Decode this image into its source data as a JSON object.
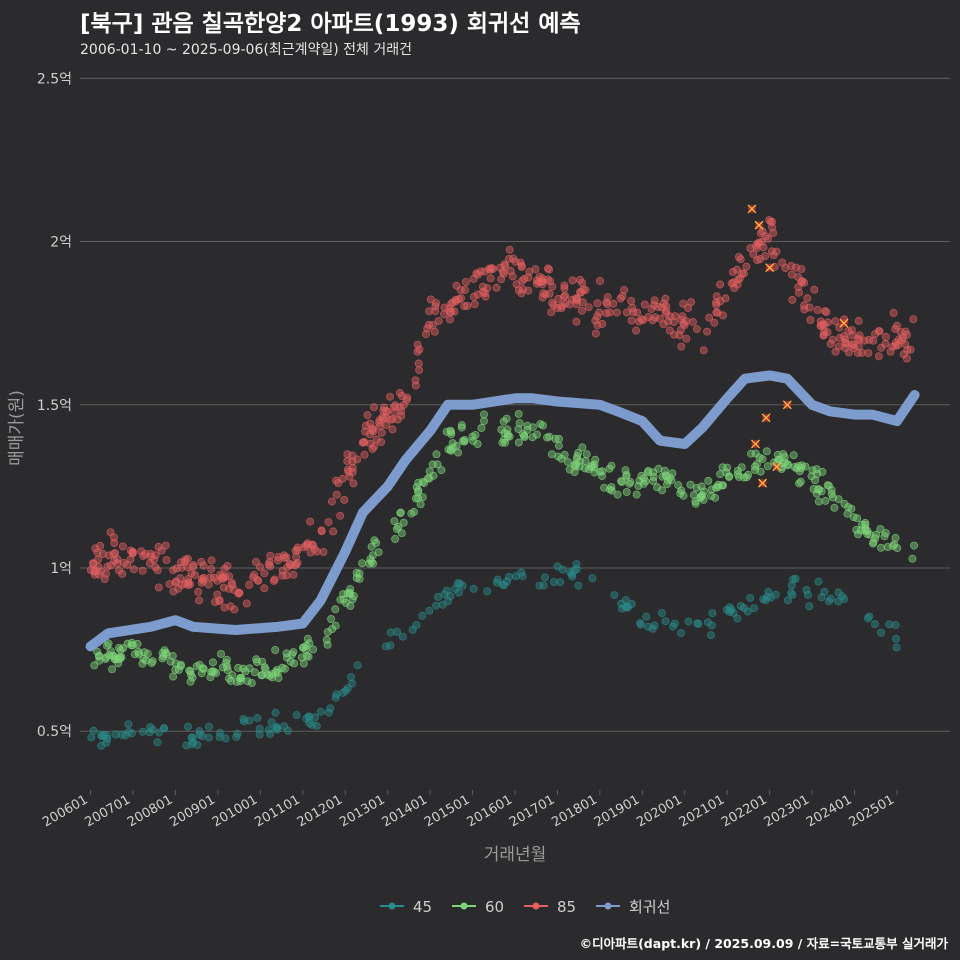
{
  "title": "[북구] 관음 칠곡한양2 아파트(1993) 회귀선 예측",
  "subtitle": "2006-01-10 ~ 2025-09-06(최근계약일) 전체 거래건",
  "credit": "©디아파트(dapt.kr) / 2025.09.09 / 자료=국토교통부 실거래가",
  "colors": {
    "background": "#2b2a2c",
    "grid": "#5e5e5e",
    "text": "#cfcfcf",
    "s45": "#2a8c8a",
    "s60": "#7fd47a",
    "s85": "#e35f61",
    "regression": "#7d9bcc",
    "highlight": "#ff2a2a"
  },
  "chart_data": {
    "type": "scatter",
    "xlabel": "거래년월",
    "ylabel": "매매가(원)",
    "xlim": [
      "2005-10",
      "2026-04"
    ],
    "ylim": [
      0.32,
      2.55
    ],
    "y_unit": "억",
    "grid": true,
    "legend_position": "bottom",
    "x_ticks": [
      "200601",
      "200701",
      "200801",
      "200901",
      "201001",
      "201101",
      "201201",
      "201301",
      "201401",
      "201501",
      "201601",
      "201701",
      "201801",
      "201901",
      "202001",
      "202101",
      "202201",
      "202301",
      "202401",
      "202501"
    ],
    "y_ticks": [
      {
        "value": 0.5,
        "label": "0.5억"
      },
      {
        "value": 1.0,
        "label": "1억"
      },
      {
        "value": 1.5,
        "label": "1.5억"
      },
      {
        "value": 2.0,
        "label": "2억"
      },
      {
        "value": 2.5,
        "label": "2.5억"
      }
    ],
    "series": [
      {
        "name": "45",
        "key": "s45",
        "kind": "scatter",
        "trend": [
          [
            "2006-01",
            0.48
          ],
          [
            "2007-06",
            0.5
          ],
          [
            "2009-01",
            0.49
          ],
          [
            "2011-06",
            0.54
          ],
          [
            "2012-06",
            0.7
          ],
          [
            "2013-06",
            0.8
          ],
          [
            "2014-06",
            0.93
          ],
          [
            "2016-01",
            0.96
          ],
          [
            "2017-06",
            0.98
          ],
          [
            "2019-01",
            0.85
          ],
          [
            "2020-06",
            0.82
          ],
          [
            "2022-01",
            0.92
          ],
          [
            "2023-06",
            0.93
          ],
          [
            "2025-01",
            0.78
          ]
        ],
        "spread": 0.05,
        "count": 190
      },
      {
        "name": "60",
        "key": "s60",
        "kind": "scatter",
        "trend": [
          [
            "2006-01",
            0.73
          ],
          [
            "2007-01",
            0.74
          ],
          [
            "2008-06",
            0.7
          ],
          [
            "2009-06",
            0.68
          ],
          [
            "2010-06",
            0.7
          ],
          [
            "2011-06",
            0.76
          ],
          [
            "2012-06",
            1.0
          ],
          [
            "2013-06",
            1.15
          ],
          [
            "2014-06",
            1.38
          ],
          [
            "2015-06",
            1.42
          ],
          [
            "2016-06",
            1.42
          ],
          [
            "2017-06",
            1.33
          ],
          [
            "2018-06",
            1.25
          ],
          [
            "2019-06",
            1.28
          ],
          [
            "2020-06",
            1.22
          ],
          [
            "2021-06",
            1.32
          ],
          [
            "2022-06",
            1.35
          ],
          [
            "2023-06",
            1.22
          ],
          [
            "2024-06",
            1.1
          ],
          [
            "2025-06",
            1.05
          ]
        ],
        "spread": 0.07,
        "count": 430
      },
      {
        "name": "85",
        "key": "s85",
        "kind": "scatter",
        "trend": [
          [
            "2006-01",
            1.02
          ],
          [
            "2007-01",
            1.04
          ],
          [
            "2008-06",
            0.98
          ],
          [
            "2009-06",
            0.92
          ],
          [
            "2010-06",
            1.0
          ],
          [
            "2011-06",
            1.1
          ],
          [
            "2012-06",
            1.38
          ],
          [
            "2013-06",
            1.52
          ],
          [
            "2014-01",
            1.75
          ],
          [
            "2015-01",
            1.85
          ],
          [
            "2016-01",
            1.92
          ],
          [
            "2017-01",
            1.85
          ],
          [
            "2018-06",
            1.78
          ],
          [
            "2019-06",
            1.78
          ],
          [
            "2020-06",
            1.72
          ],
          [
            "2021-06",
            1.95
          ],
          [
            "2022-01",
            2.02
          ],
          [
            "2022-09",
            1.88
          ],
          [
            "2023-06",
            1.72
          ],
          [
            "2024-06",
            1.7
          ],
          [
            "2025-06",
            1.7
          ]
        ],
        "spread": 0.1,
        "count": 560
      },
      {
        "name": "회귀선",
        "key": "regression",
        "kind": "line",
        "points": [
          [
            "2006-01",
            0.76
          ],
          [
            "2006-06",
            0.8
          ],
          [
            "2007-06",
            0.82
          ],
          [
            "2008-01",
            0.84
          ],
          [
            "2008-06",
            0.82
          ],
          [
            "2009-06",
            0.81
          ],
          [
            "2010-06",
            0.82
          ],
          [
            "2011-01",
            0.83
          ],
          [
            "2011-06",
            0.9
          ],
          [
            "2012-01",
            1.05
          ],
          [
            "2012-06",
            1.17
          ],
          [
            "2013-01",
            1.25
          ],
          [
            "2013-06",
            1.33
          ],
          [
            "2014-01",
            1.42
          ],
          [
            "2014-06",
            1.5
          ],
          [
            "2015-01",
            1.5
          ],
          [
            "2016-01",
            1.52
          ],
          [
            "2016-06",
            1.52
          ],
          [
            "2017-01",
            1.51
          ],
          [
            "2018-01",
            1.5
          ],
          [
            "2018-06",
            1.48
          ],
          [
            "2019-01",
            1.45
          ],
          [
            "2019-06",
            1.39
          ],
          [
            "2020-01",
            1.38
          ],
          [
            "2020-06",
            1.43
          ],
          [
            "2021-01",
            1.52
          ],
          [
            "2021-06",
            1.58
          ],
          [
            "2022-01",
            1.59
          ],
          [
            "2022-06",
            1.58
          ],
          [
            "2023-01",
            1.5
          ],
          [
            "2023-06",
            1.48
          ],
          [
            "2024-01",
            1.47
          ],
          [
            "2024-06",
            1.47
          ],
          [
            "2025-01",
            1.45
          ],
          [
            "2025-06",
            1.53
          ]
        ]
      }
    ],
    "highlighted_points": [
      [
        "2021-10",
        2.05
      ],
      [
        "2021-12",
        1.46
      ],
      [
        "2022-03",
        1.31
      ],
      [
        "2021-11",
        1.26
      ],
      [
        "2022-06",
        1.5
      ],
      [
        "2021-09",
        1.38
      ],
      [
        "2022-01",
        1.92
      ],
      [
        "2021-08",
        2.1
      ],
      [
        "2023-10",
        1.75
      ]
    ]
  }
}
